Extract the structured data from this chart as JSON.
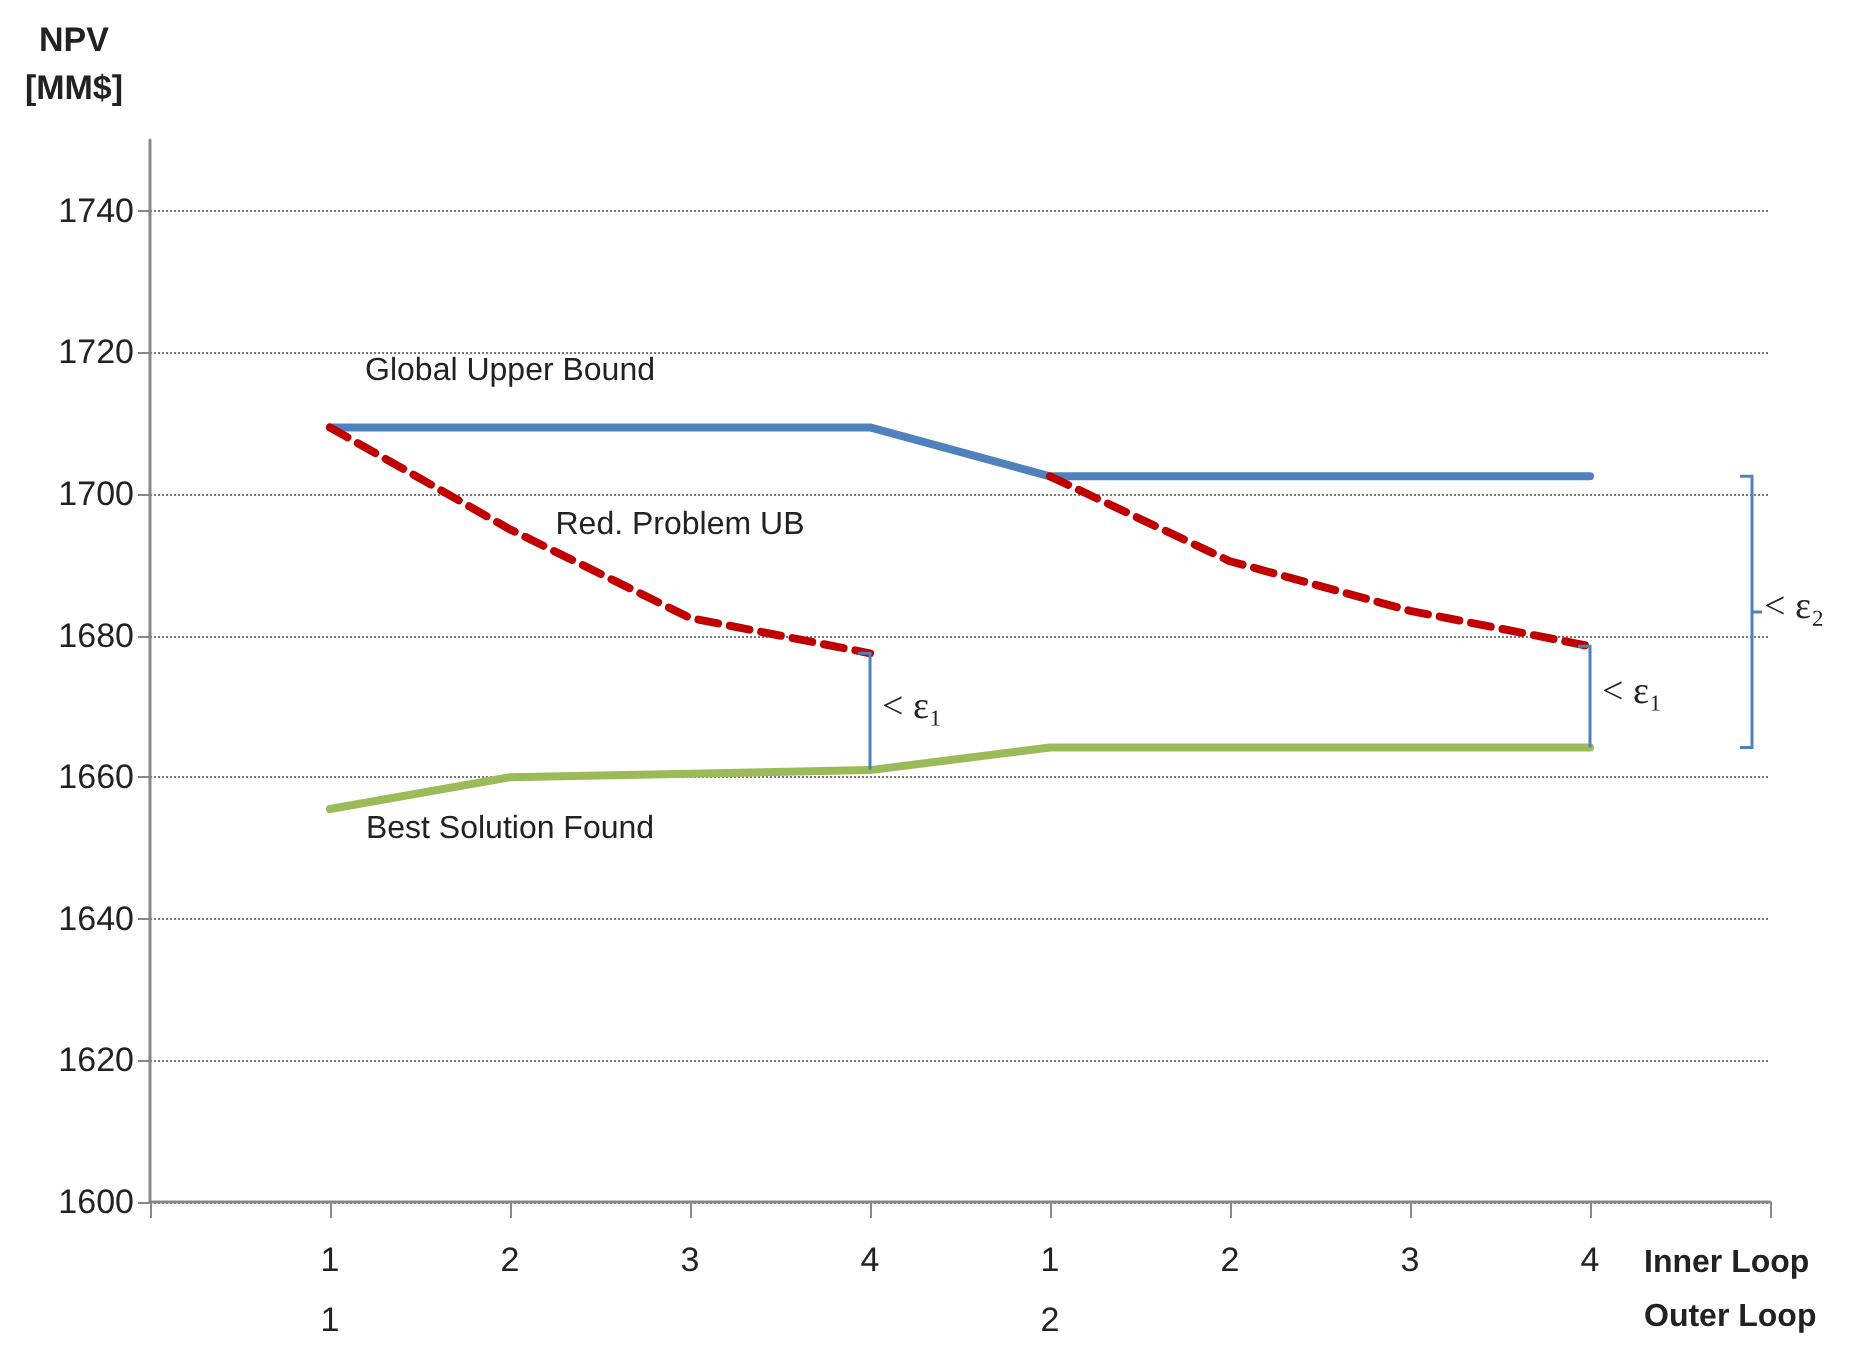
{
  "chart_data": {
    "type": "line",
    "ylabel": "NPV\n[MM$]",
    "xlabel": "Inner Loop\nOuter Loop",
    "categories": [
      null,
      "1\n1",
      "2",
      "3",
      "4",
      "1\n2",
      "2",
      "3",
      "4",
      null
    ],
    "series": [
      {
        "name": "Global Upper Bound",
        "color": "#4f81bd",
        "line_style": "solid",
        "values": [
          null,
          1709.4,
          1709.4,
          1709.4,
          1709.4,
          1702.5,
          1702.5,
          1702.5,
          1702.5,
          null
        ]
      },
      {
        "name": "Red. Problem UB",
        "color": "#c00000",
        "line_style": "dashed",
        "values": [
          null,
          1709.4,
          1695,
          1682.5,
          1677.5,
          null,
          null,
          null,
          null,
          null
        ]
      },
      {
        "color": "#c00000",
        "line_style": "dashed",
        "values": [
          null,
          null,
          null,
          null,
          null,
          1702.5,
          1690.5,
          1683.5,
          1678.5,
          null
        ]
      },
      {
        "name": "Best Solution Found",
        "color": "#9bbb59",
        "line_style": "solid",
        "values": [
          null,
          1655.5,
          1660,
          1660.5,
          1661,
          1664.2,
          1664.2,
          1664.2,
          1664.2,
          null
        ]
      }
    ],
    "annotations": [
      "< ε₁",
      "< ε₁",
      "< ε₂"
    ],
    "ylim": [
      1600,
      1750
    ],
    "yticks": [
      1600,
      1620,
      1640,
      1660,
      1680,
      1700,
      1720,
      1740
    ],
    "grid": "y",
    "legend": false,
    "marker": "none"
  }
}
